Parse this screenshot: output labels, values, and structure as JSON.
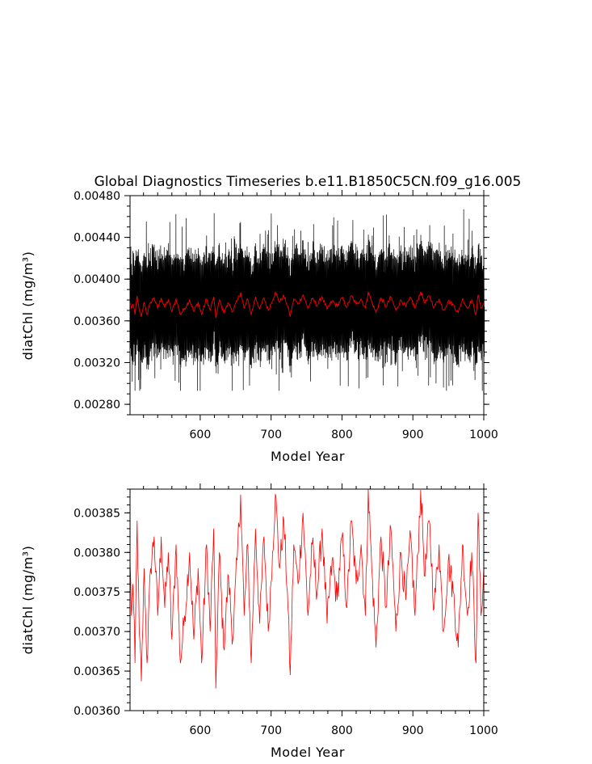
{
  "figure": {
    "title": "Global Diagnostics Timeseries b.e11.B1850C5CN.f09_g16.005"
  },
  "chart_data": [
    {
      "type": "line",
      "title": "Global Diagnostics Timeseries b.e11.B1850C5CN.f09_g16.005",
      "xlabel": "Model Year",
      "ylabel": "diatChl (mg/m³)",
      "xlim": [
        501,
        1000
      ],
      "ylim": [
        0.0027,
        0.0048
      ],
      "x_ticks": [
        "600",
        "700",
        "800",
        "900",
        "1000"
      ],
      "y_ticks": [
        "0.00280",
        "0.00320",
        "0.00360",
        "0.00400",
        "0.00440",
        "0.00480"
      ],
      "grid": false,
      "series": [
        {
          "color": "#000000",
          "style": "monthly values, dense oscillation",
          "x_range": [
            501,
            1000
          ],
          "typical_min": 0.00305,
          "typical_max": 0.00455,
          "extreme_min": 0.00293,
          "extreme_max": 0.0047
        },
        {
          "color": "#ff0000",
          "style": "annual mean",
          "x_range": [
            501,
            1000
          ],
          "annual_values_ref": "chart_data.1.series.0"
        }
      ]
    },
    {
      "type": "line",
      "title": "",
      "xlabel": "Model Year",
      "ylabel": "diatChl (mg/m³)",
      "xlim": [
        501,
        1000
      ],
      "ylim": [
        0.0036,
        0.00388
      ],
      "x_ticks": [
        "600",
        "700",
        "800",
        "900",
        "1000"
      ],
      "y_ticks": [
        "0.00360",
        "0.00365",
        "0.00370",
        "0.00375",
        "0.00380",
        "0.00385"
      ],
      "grid": false,
      "series": [
        {
          "color": "#ff0000",
          "x_start": 501,
          "x_step": 1,
          "anchors": [
            [
              501,
              0.00379
            ],
            [
              503,
              0.00372
            ],
            [
              505,
              0.00376
            ],
            [
              508,
              0.00366
            ],
            [
              511,
              0.00384
            ],
            [
              514,
              0.0037
            ],
            [
              517,
              0.003637
            ],
            [
              521,
              0.00378
            ],
            [
              525,
              0.00366
            ],
            [
              530,
              0.00378
            ],
            [
              535,
              0.00382
            ],
            [
              540,
              0.00372
            ],
            [
              545,
              0.00382
            ],
            [
              550,
              0.00373
            ],
            [
              555,
              0.0038
            ],
            [
              560,
              0.00369
            ],
            [
              566,
              0.00381
            ],
            [
              572,
              0.00366
            ],
            [
              578,
              0.00372
            ],
            [
              585,
              0.0038
            ],
            [
              591,
              0.00369
            ],
            [
              597,
              0.00378
            ],
            [
              602,
              0.00366
            ],
            [
              609,
              0.00381
            ],
            [
              614,
              0.0037
            ],
            [
              619,
              0.00383
            ],
            [
              622,
              0.003628
            ],
            [
              627,
              0.0038
            ],
            [
              633,
              0.00368
            ],
            [
              640,
              0.00377
            ],
            [
              646,
              0.00369
            ],
            [
              652,
              0.00379
            ],
            [
              657,
              0.003873
            ],
            [
              662,
              0.00372
            ],
            [
              667,
              0.00381
            ],
            [
              672,
              0.00366
            ],
            [
              678,
              0.00383
            ],
            [
              684,
              0.00371
            ],
            [
              690,
              0.00382
            ],
            [
              696,
              0.0037
            ],
            [
              702,
              0.0038
            ],
            [
              706,
              0.003874
            ],
            [
              712,
              0.00378
            ],
            [
              718,
              0.00384
            ],
            [
              723,
              0.00375
            ],
            [
              727,
              0.003645
            ],
            [
              732,
              0.00381
            ],
            [
              738,
              0.00376
            ],
            [
              745,
              0.00385
            ],
            [
              752,
              0.00372
            ],
            [
              758,
              0.00381
            ],
            [
              765,
              0.00375
            ],
            [
              772,
              0.00383
            ],
            [
              779,
              0.00371
            ],
            [
              786,
              0.00379
            ],
            [
              793,
              0.00374
            ],
            [
              800,
              0.00382
            ],
            [
              807,
              0.00373
            ],
            [
              813,
              0.00384
            ],
            [
              820,
              0.00376
            ],
            [
              827,
              0.00381
            ],
            [
              833,
              0.00372
            ],
            [
              837,
              0.00388
            ],
            [
              842,
              0.00378
            ],
            [
              848,
              0.00368
            ],
            [
              855,
              0.00382
            ],
            [
              862,
              0.00373
            ],
            [
              869,
              0.00383
            ],
            [
              876,
              0.0037
            ],
            [
              883,
              0.0038
            ],
            [
              890,
              0.00374
            ],
            [
              897,
              0.00382
            ],
            [
              903,
              0.00372
            ],
            [
              911,
              0.003879
            ],
            [
              917,
              0.00377
            ],
            [
              923,
              0.00384
            ],
            [
              930,
              0.00373
            ],
            [
              937,
              0.00381
            ],
            [
              943,
              0.0037
            ],
            [
              950,
              0.00379
            ],
            [
              957,
              0.00375
            ],
            [
              964,
              0.00368
            ],
            [
              970,
              0.00381
            ],
            [
              977,
              0.00372
            ],
            [
              983,
              0.0038
            ],
            [
              989,
              0.00366
            ],
            [
              992,
              0.00385
            ],
            [
              996,
              0.00372
            ],
            [
              1000,
              0.00378
            ]
          ]
        }
      ]
    }
  ]
}
